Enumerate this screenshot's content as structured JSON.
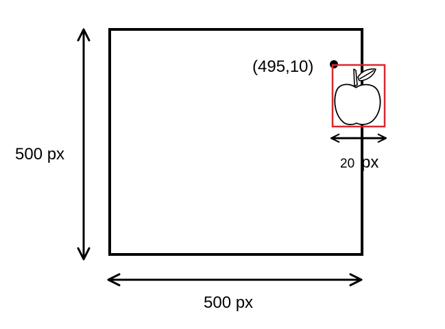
{
  "diagram": {
    "height_label": "500 px",
    "width_label": "500 px",
    "point_label": "(495,10)",
    "object_size_number": "20",
    "object_size_unit": "px"
  },
  "colors": {
    "stroke": "#000000",
    "highlight_box": "#d9262c",
    "background": "#ffffff"
  },
  "icons": {
    "object": "apple-icon"
  }
}
